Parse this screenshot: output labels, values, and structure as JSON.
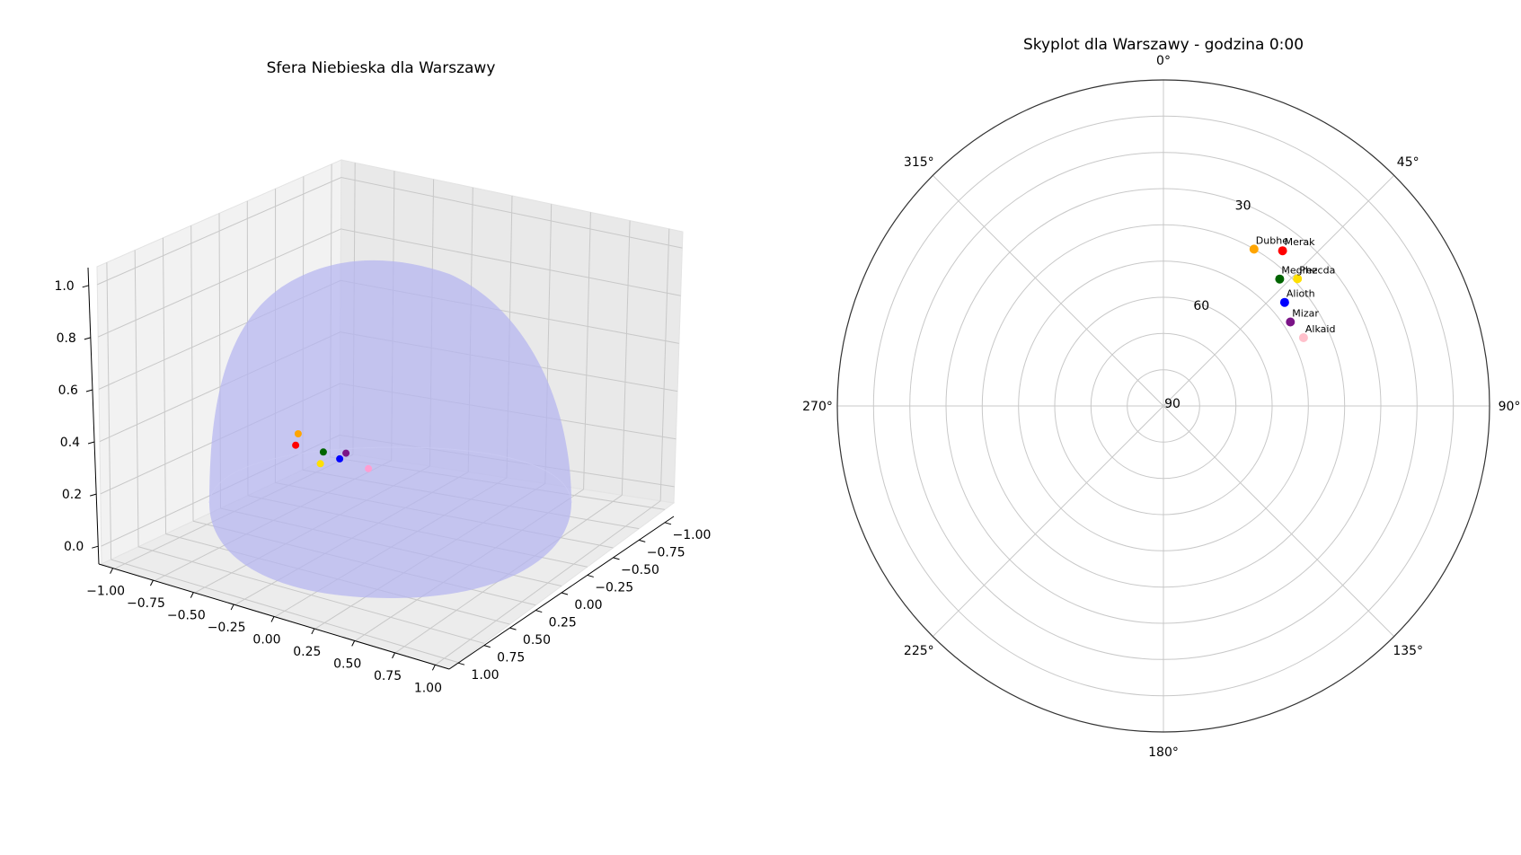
{
  "chart_data": [
    {
      "type": "scatter",
      "title": "Sfera Niebieska dla Warszawy",
      "x_ticks": [
        "−1.00",
        "−0.75",
        "−0.50",
        "−0.25",
        "0.00",
        "0.25",
        "0.50",
        "0.75",
        "1.00"
      ],
      "y_ticks": [
        "−1.00",
        "−0.75",
        "−0.50",
        "−0.25",
        "0.00",
        "0.25",
        "0.50",
        "0.75",
        "1.00"
      ],
      "z_ticks": [
        "0.0",
        "0.2",
        "0.4",
        "0.6",
        "0.8",
        "1.0"
      ],
      "xlim": [
        -1,
        1
      ],
      "ylim": [
        -1,
        1
      ],
      "zlim": [
        0,
        1
      ],
      "grid": true,
      "hemisphere_color": "#b4b4f0",
      "points": [
        {
          "color": "#ff9ed2",
          "x": 0.53,
          "y": 0.29,
          "z": 0.51
        },
        {
          "color": "#7b1487",
          "x": 0.53,
          "y": 0.09,
          "z": 0.55
        },
        {
          "color": "#0000ff",
          "x": 0.52,
          "y": 0.03,
          "z": 0.52
        },
        {
          "color": "#006400",
          "x": 0.51,
          "y": -0.12,
          "z": 0.53
        },
        {
          "color": "#ffa500",
          "x": 0.52,
          "y": -0.34,
          "z": 0.58
        },
        {
          "color": "#ffe000",
          "x": 0.57,
          "y": -0.12,
          "z": 0.49
        },
        {
          "color": "#ff0000",
          "x": 0.57,
          "y": -0.34,
          "z": 0.54
        }
      ]
    },
    {
      "type": "scatter",
      "title": "Skyplot dla Warszawy - godzina 0:00",
      "projection": "polar",
      "theta_direction": "clockwise",
      "theta_zero": "N",
      "r_axis": "altitude",
      "theta_ticks": [
        {
          "deg": 0,
          "label": "0°"
        },
        {
          "deg": 45,
          "label": "45°"
        },
        {
          "deg": 90,
          "label": "90°"
        },
        {
          "deg": 135,
          "label": "135°"
        },
        {
          "deg": 180,
          "label": "180°"
        },
        {
          "deg": 225,
          "label": "225°"
        },
        {
          "deg": 270,
          "label": "270°"
        },
        {
          "deg": 315,
          "label": "315°"
        }
      ],
      "r_ticks": [
        {
          "alt": 30,
          "label": "30"
        },
        {
          "alt": 60,
          "label": "60"
        },
        {
          "alt": 90,
          "label": "90"
        }
      ],
      "stars": [
        {
          "name": "Dubhe",
          "azimuth": 30.0,
          "altitude": 40.0,
          "color": "#ffa500"
        },
        {
          "name": "Merak",
          "azimuth": 37.5,
          "altitude": 36.0,
          "color": "#ff0000"
        },
        {
          "name": "Phecda",
          "azimuth": 46.5,
          "altitude": 39.0,
          "color": "#ffe000"
        },
        {
          "name": "Megrez",
          "azimuth": 42.5,
          "altitude": 42.5,
          "color": "#006400"
        },
        {
          "name": "Alioth",
          "azimuth": 49.5,
          "altitude": 46.0,
          "color": "#0000ff"
        },
        {
          "name": "Mizar",
          "azimuth": 56.5,
          "altitude": 48.0,
          "color": "#7b1487"
        },
        {
          "name": "Alkaid",
          "azimuth": 64.0,
          "altitude": 47.0,
          "color": "#ffc0cb"
        }
      ]
    }
  ]
}
